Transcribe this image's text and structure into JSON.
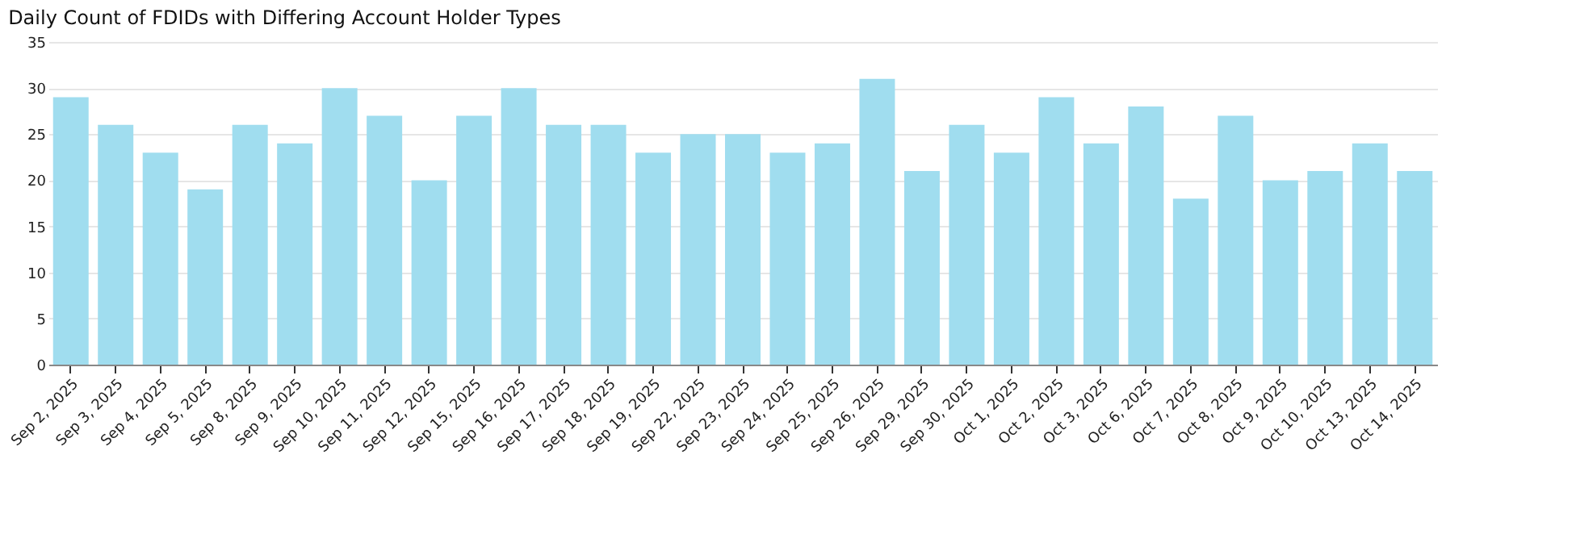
{
  "chart_data": {
    "type": "bar",
    "title": "Daily Count of FDIDs with Differing Account Holder Types",
    "categories": [
      "Sep 2, 2025",
      "Sep 3, 2025",
      "Sep 4, 2025",
      "Sep 5, 2025",
      "Sep 8, 2025",
      "Sep 9, 2025",
      "Sep 10, 2025",
      "Sep 11, 2025",
      "Sep 12, 2025",
      "Sep 15, 2025",
      "Sep 16, 2025",
      "Sep 17, 2025",
      "Sep 18, 2025",
      "Sep 19, 2025",
      "Sep 22, 2025",
      "Sep 23, 2025",
      "Sep 24, 2025",
      "Sep 25, 2025",
      "Sep 26, 2025",
      "Sep 29, 2025",
      "Sep 30, 2025",
      "Oct 1, 2025",
      "Oct 2, 2025",
      "Oct 3, 2025",
      "Oct 6, 2025",
      "Oct 7, 2025",
      "Oct 8, 2025",
      "Oct 9, 2025",
      "Oct 10, 2025",
      "Oct 13, 2025",
      "Oct 14, 2025"
    ],
    "values": [
      29,
      26,
      23,
      19,
      26,
      24,
      30,
      27,
      20,
      27,
      30,
      26,
      26,
      23,
      25,
      25,
      23,
      24,
      31,
      21,
      26,
      23,
      29,
      24,
      28,
      18,
      27,
      20,
      21,
      24,
      21
    ],
    "color": "#a0ddef",
    "ylim": [
      0,
      35
    ],
    "yticks": [
      0,
      5,
      10,
      15,
      20,
      25,
      30,
      35
    ],
    "grid": "y"
  }
}
